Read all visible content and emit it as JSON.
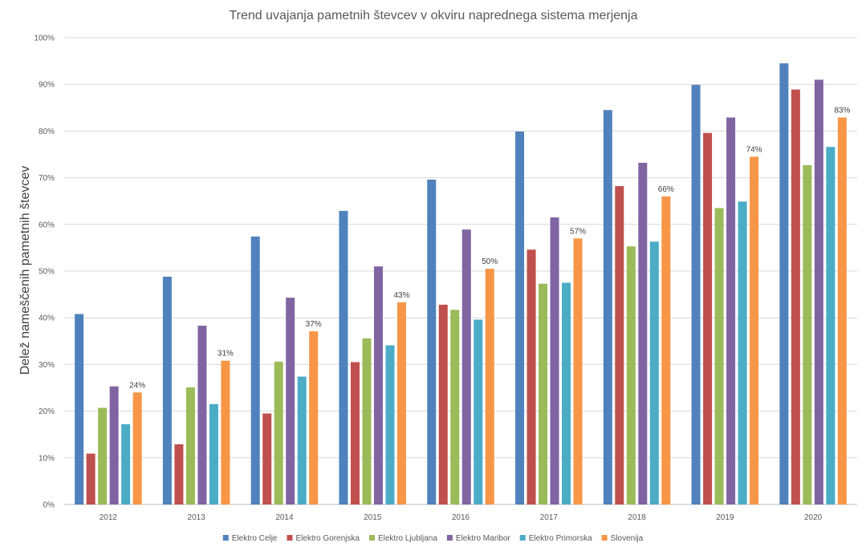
{
  "chart_data": {
    "type": "bar",
    "title": "Trend uvajanja pametnih števcev v okviru naprednega sistema merjenja",
    "xlabel": "",
    "ylabel": "Delež nameščenih pametnih  števcev",
    "ylim": [
      0,
      100
    ],
    "y_tick_suffix": "%",
    "y_ticks": [
      "0%",
      "10%",
      "20%",
      "30%",
      "40%",
      "50%",
      "60%",
      "70%",
      "80%",
      "90%",
      "100%"
    ],
    "grid": true,
    "legend_position": "bottom",
    "categories": [
      "2012",
      "2013",
      "2014",
      "2015",
      "2016",
      "2017",
      "2018",
      "2019",
      "2020"
    ],
    "series": [
      {
        "name": "Elektro Celje",
        "color": "#4F81BD",
        "values": [
          40.8,
          48.8,
          57.4,
          62.9,
          69.6,
          79.9,
          84.5,
          89.9,
          94.5
        ]
      },
      {
        "name": "Elektro Gorenjska",
        "color": "#C0504D",
        "values": [
          10.9,
          12.9,
          19.5,
          30.5,
          42.8,
          54.6,
          68.2,
          79.6,
          88.9
        ]
      },
      {
        "name": "Elektro Ljubljana",
        "color": "#9BBB59",
        "values": [
          20.7,
          25.1,
          30.6,
          35.6,
          41.7,
          47.3,
          55.3,
          63.5,
          72.7
        ]
      },
      {
        "name": "Elektro Maribor",
        "color": "#8064A2",
        "values": [
          25.3,
          38.3,
          44.3,
          51.0,
          58.9,
          61.5,
          73.2,
          82.9,
          91.0
        ]
      },
      {
        "name": "Elektro Primorska",
        "color": "#4BACC6",
        "values": [
          17.2,
          21.5,
          27.4,
          34.1,
          39.6,
          47.5,
          56.3,
          64.9,
          76.6
        ]
      },
      {
        "name": "Slovenija",
        "color": "#F79646",
        "values": [
          24.0,
          30.8,
          37.1,
          43.3,
          50.5,
          57.0,
          66.0,
          74.5,
          82.9
        ],
        "data_labels": [
          "24%",
          "31%",
          "37%",
          "43%",
          "50%",
          "57%",
          "66%",
          "74%",
          "83%"
        ]
      }
    ]
  }
}
